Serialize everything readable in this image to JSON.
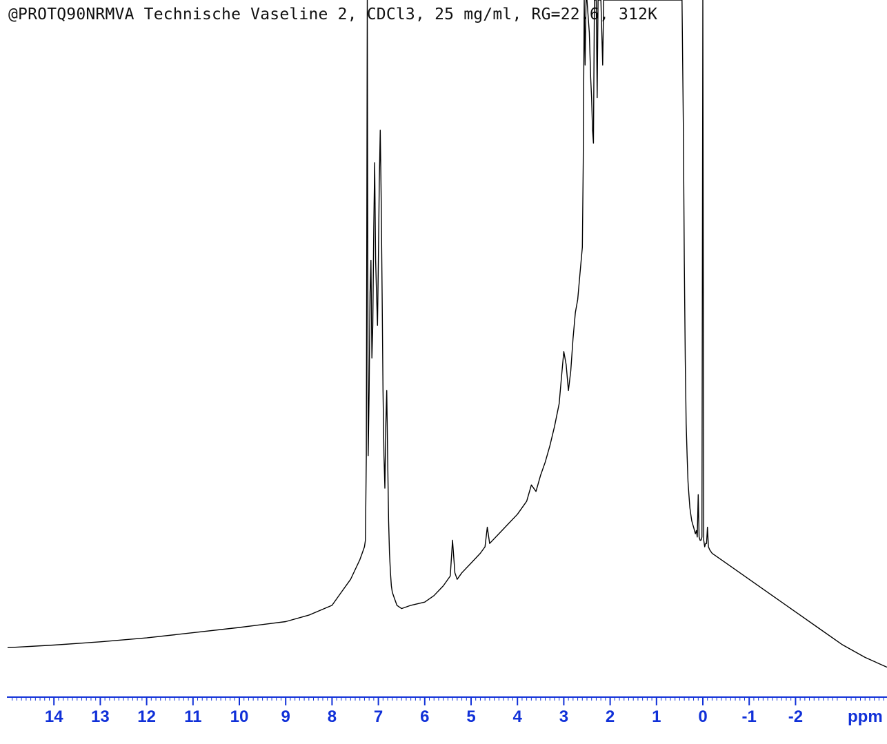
{
  "title": "@PROTQ90NRMVA Technische Vaseline 2, CDCl3, 25 mg/ml, RG=22.6, 312K",
  "axis_color": "#1030d8",
  "trace_color": "#000000",
  "chart_data": {
    "type": "line",
    "title": "@PROTQ90NRMVA Technische Vaseline 2, CDCl3, 25 mg/ml, RG=22.6, 312K",
    "xlabel": "ppm",
    "ylabel": "",
    "x_reversed": true,
    "xlim": [
      15.0,
      -4.0
    ],
    "ylim": [
      0,
      100
    ],
    "grid": false,
    "legend": "none",
    "x_ticks": [
      14,
      13,
      12,
      11,
      10,
      9,
      8,
      7,
      6,
      5,
      4,
      3,
      2,
      1,
      0,
      -1,
      -2
    ],
    "x_tick_labels": [
      "14",
      "13",
      "12",
      "11",
      "10",
      "9",
      "8",
      "7",
      "6",
      "5",
      "4",
      "3",
      "2",
      "1",
      "0",
      "-1",
      "-2"
    ],
    "unit_label": "ppm",
    "series": [
      {
        "x": [
          15.0,
          14.0,
          13.0,
          12.0,
          11.0,
          10.0,
          9.0,
          8.5,
          8.0,
          7.8,
          7.6,
          7.5,
          7.4,
          7.35,
          7.3,
          7.28,
          7.26,
          7.24,
          7.22,
          7.2,
          7.18,
          7.16,
          7.14,
          7.12,
          7.1,
          7.08,
          7.06,
          7.04,
          7.02,
          7.0,
          6.98,
          6.96,
          6.94,
          6.92,
          6.9,
          6.88,
          6.86,
          6.84,
          6.82,
          6.8,
          6.78,
          6.76,
          6.74,
          6.72,
          6.7,
          6.65,
          6.6,
          6.5,
          6.3,
          6.0,
          5.8,
          5.6,
          5.45,
          5.4,
          5.35,
          5.3,
          5.2,
          5.0,
          4.8,
          4.7,
          4.65,
          4.6,
          4.4,
          4.2,
          4.0,
          3.8,
          3.7,
          3.6,
          3.5,
          3.4,
          3.3,
          3.2,
          3.1,
          3.05,
          3.0,
          2.95,
          2.9,
          2.85,
          2.8,
          2.75,
          2.7,
          2.65,
          2.6,
          2.58,
          2.56,
          2.54,
          2.52,
          2.5,
          2.45,
          2.42,
          2.4,
          2.38,
          2.36,
          2.34,
          2.32,
          2.3,
          2.28,
          2.26,
          2.24,
          2.22,
          2.2,
          2.18,
          2.16,
          2.14,
          2.12,
          2.1,
          2.0,
          1.9,
          1.8,
          1.7,
          1.6,
          1.5,
          1.4,
          1.3,
          1.2,
          1.1,
          1.0,
          0.9,
          0.8,
          0.7,
          0.6,
          0.5,
          0.45,
          0.42,
          0.4,
          0.38,
          0.36,
          0.34,
          0.32,
          0.3,
          0.28,
          0.26,
          0.24,
          0.22,
          0.2,
          0.18,
          0.16,
          0.14,
          0.12,
          0.1,
          0.08,
          0.06,
          0.04,
          0.02,
          0.0,
          -0.02,
          -0.04,
          -0.06,
          -0.08,
          -0.1,
          -0.12,
          -0.15,
          -0.2,
          -0.5,
          -1.0,
          -1.5,
          -2.0,
          -2.5,
          -3.0,
          -3.5,
          -4.0
        ],
        "y": [
          0.5,
          0.9,
          1.4,
          2.0,
          2.8,
          3.6,
          4.5,
          5.5,
          7.0,
          9.0,
          11.0,
          12.5,
          14.0,
          15.0,
          16.0,
          17.0,
          30.0,
          100.0,
          30.0,
          40.0,
          55.0,
          60.0,
          45.0,
          50.0,
          65.0,
          75.0,
          60.0,
          55.0,
          50.0,
          60.0,
          72.0,
          80.0,
          70.0,
          55.0,
          40.0,
          30.0,
          25.0,
          35.0,
          40.0,
          30.0,
          20.0,
          15.0,
          12.0,
          10.0,
          9.0,
          8.0,
          7.0,
          6.5,
          7.0,
          7.5,
          8.5,
          10.0,
          11.5,
          17.0,
          12.0,
          11.0,
          12.0,
          13.5,
          15.0,
          16.0,
          19.0,
          16.5,
          18.0,
          19.5,
          21.0,
          23.0,
          25.5,
          24.5,
          27.0,
          29.0,
          31.5,
          34.5,
          38.0,
          42.0,
          46.0,
          44.0,
          40.0,
          43.0,
          48.0,
          52.0,
          54.0,
          58.0,
          62.0,
          75.0,
          100.0,
          90.0,
          100.0,
          100.0,
          95.0,
          88.0,
          85.0,
          80.0,
          78.0,
          100.0,
          100.0,
          100.0,
          85.0,
          100.0,
          100.0,
          100.0,
          100.0,
          95.0,
          90.0,
          100.0,
          100.0,
          100.0,
          100.0,
          100.0,
          100.0,
          100.0,
          100.0,
          100.0,
          100.0,
          100.0,
          100.0,
          100.0,
          100.0,
          100.0,
          100.0,
          100.0,
          100.0,
          100.0,
          100.0,
          80.0,
          60.0,
          45.0,
          35.0,
          30.0,
          26.0,
          24.0,
          22.0,
          21.0,
          20.0,
          19.5,
          19.0,
          18.5,
          18.0,
          18.5,
          17.5,
          24.0,
          17.5,
          17.0,
          17.0,
          17.5,
          100.0,
          17.0,
          16.0,
          16.5,
          16.5,
          19.0,
          16.0,
          15.5,
          15.0,
          13.5,
          11.0,
          8.5,
          6.0,
          3.5,
          1.0,
          -1.0,
          -2.5
        ]
      }
    ]
  }
}
